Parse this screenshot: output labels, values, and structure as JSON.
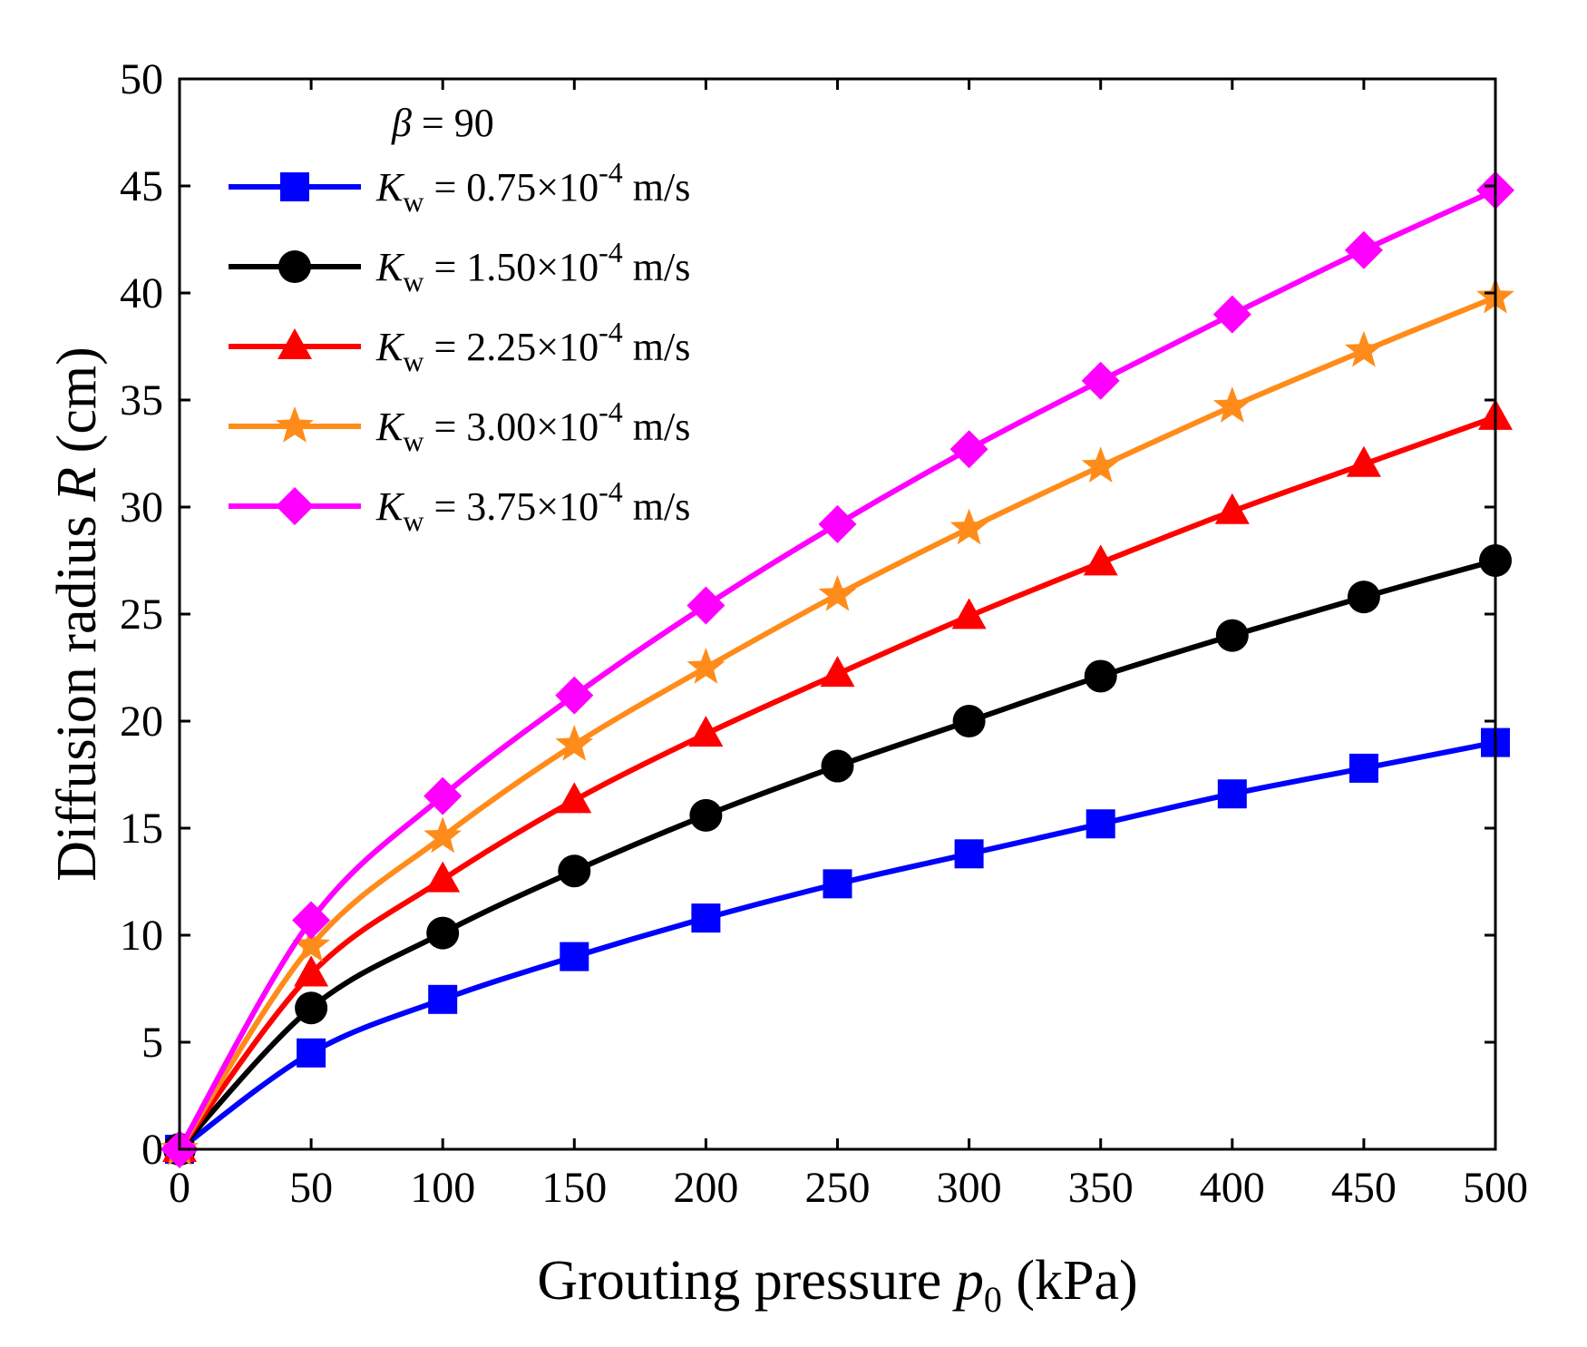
{
  "chart_data": {
    "type": "line",
    "xlabel": "Grouting pressure p0 (kPa)",
    "ylabel": "Diffusion radius R (cm)",
    "xlim": [
      0,
      500
    ],
    "ylim": [
      0,
      50
    ],
    "x_ticks": [
      0,
      50,
      100,
      150,
      200,
      250,
      300,
      350,
      400,
      450,
      500
    ],
    "y_ticks": [
      0,
      5,
      10,
      15,
      20,
      25,
      30,
      35,
      40,
      45,
      50
    ],
    "grid": false,
    "legend_position": "top-left",
    "legend_header": "β = 90",
    "x": [
      0,
      50,
      100,
      150,
      200,
      250,
      300,
      350,
      400,
      450,
      500
    ],
    "series": [
      {
        "name": "Kw = 0.75×10-4 m/s",
        "color": "#0000ff",
        "marker": "square",
        "values": [
          0,
          4.5,
          7.0,
          9.0,
          10.8,
          12.4,
          13.8,
          15.2,
          16.6,
          17.8,
          19.0
        ]
      },
      {
        "name": "Kw = 1.50×10-4 m/s",
        "color": "#000000",
        "marker": "circle",
        "values": [
          0,
          6.6,
          10.1,
          13.0,
          15.6,
          17.9,
          20.0,
          22.1,
          24.0,
          25.8,
          27.5
        ]
      },
      {
        "name": "Kw = 2.25×10-4 m/s",
        "color": "#ff0000",
        "marker": "triangle",
        "values": [
          0,
          8.2,
          12.6,
          16.3,
          19.4,
          22.2,
          24.9,
          27.4,
          29.8,
          32.0,
          34.2
        ]
      },
      {
        "name": "Kw = 3.00×10-4 m/s",
        "color": "#ff8c1a",
        "marker": "star",
        "values": [
          0,
          9.5,
          14.6,
          18.9,
          22.5,
          25.9,
          29.0,
          31.9,
          34.7,
          37.3,
          39.8
        ]
      },
      {
        "name": "Kw = 3.75×10-4 m/s",
        "color": "#ff00ff",
        "marker": "diamond",
        "values": [
          0,
          10.7,
          16.5,
          21.2,
          25.4,
          29.2,
          32.7,
          35.9,
          39.0,
          42.0,
          44.8
        ]
      }
    ]
  },
  "axes": {
    "x_title": {
      "prefix": "Grouting pressure ",
      "var": "p",
      "sub": "0",
      "unit": " (kPa)"
    },
    "y_title": {
      "prefix": "Diffusion radius ",
      "var": "R",
      "unit": " (cm)"
    }
  },
  "legend": {
    "header": {
      "symbol": "β",
      "rest": " = 90"
    },
    "entries": [
      {
        "var": "K",
        "sub": "w",
        "mid": " = 0.75×10",
        "exp": "-4",
        "unit": " m/s"
      },
      {
        "var": "K",
        "sub": "w",
        "mid": " = 1.50×10",
        "exp": "-4",
        "unit": " m/s"
      },
      {
        "var": "K",
        "sub": "w",
        "mid": " = 2.25×10",
        "exp": "-4",
        "unit": " m/s"
      },
      {
        "var": "K",
        "sub": "w",
        "mid": " = 3.00×10",
        "exp": "-4",
        "unit": " m/s"
      },
      {
        "var": "K",
        "sub": "w",
        "mid": " = 3.75×10",
        "exp": "-4",
        "unit": " m/s"
      }
    ]
  }
}
